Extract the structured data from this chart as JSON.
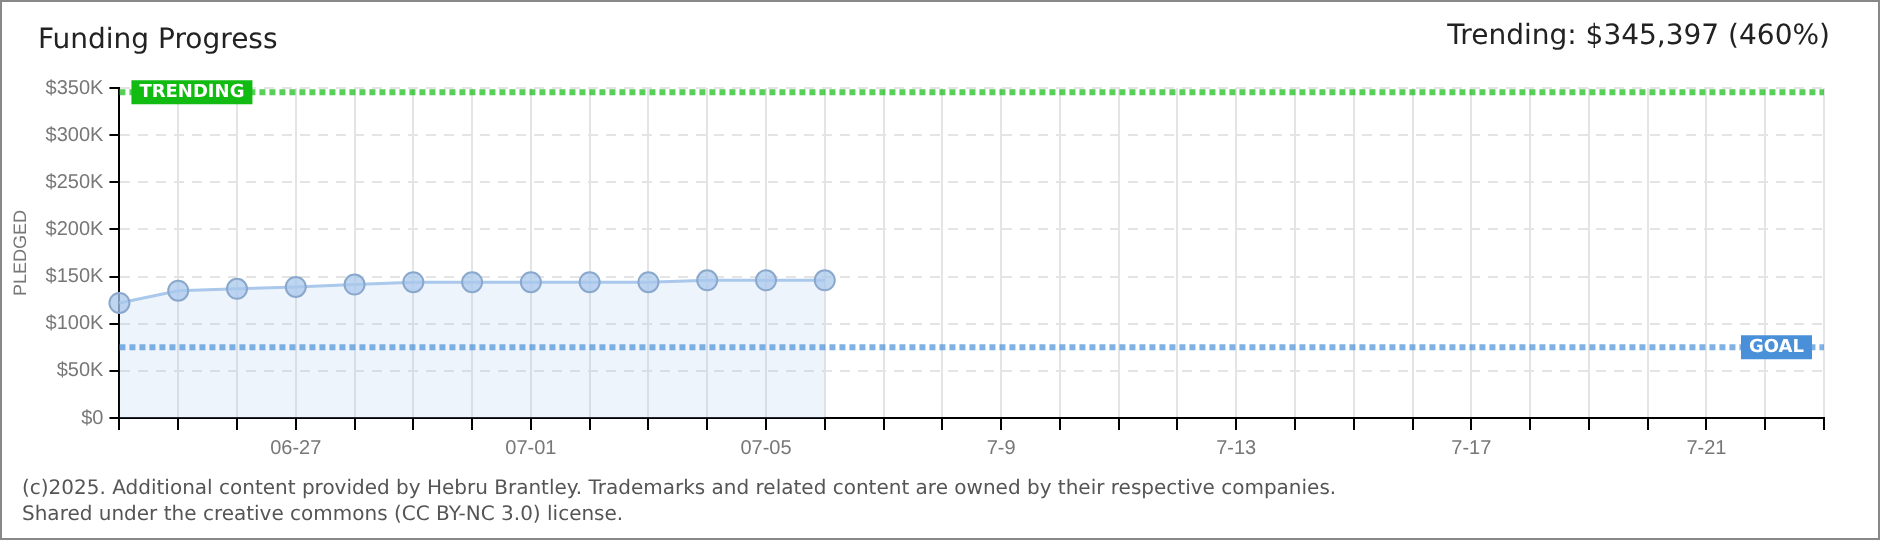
{
  "chart_data": {
    "type": "area",
    "title": "Funding Progress",
    "subtitle": "Trending: $345,397 (460%)",
    "ylabel": "PLEDGED",
    "categories": [
      null,
      null,
      null,
      "06-27",
      null,
      null,
      null,
      "07-01",
      null,
      null,
      null,
      "07-05",
      null,
      null,
      null,
      "7-9",
      null,
      null,
      null,
      "7-13",
      null,
      null,
      null,
      "7-17",
      null,
      null,
      null,
      "7-21",
      null,
      null
    ],
    "series": [
      {
        "color": "#a9c8ec",
        "values": [
          122000,
          135000,
          137000,
          139000,
          141500,
          144000,
          144000,
          144000,
          144000,
          144000,
          146000,
          146000,
          146000,
          null,
          null,
          null,
          null,
          null,
          null,
          null,
          null,
          null,
          null,
          null,
          null,
          null,
          null,
          null,
          null,
          null
        ]
      }
    ],
    "ylim": [
      0,
      350000
    ],
    "yticks": [
      {
        "value": 0,
        "label": "$0"
      },
      {
        "value": 50000,
        "label": "$50K"
      },
      {
        "value": 100000,
        "label": "$100K"
      },
      {
        "value": 150000,
        "label": "$150K"
      },
      {
        "value": 200000,
        "label": "$200K"
      },
      {
        "value": 250000,
        "label": "$250K"
      },
      {
        "value": 300000,
        "label": "$300K"
      },
      {
        "value": 350000,
        "label": "$350K"
      }
    ],
    "ref_lines": [
      {
        "axis": "y",
        "value": 345397,
        "label": "TRENDING",
        "color": "#11bb11",
        "line_style": "dotted"
      },
      {
        "axis": "y",
        "value": 75000,
        "label": "GOAL",
        "color": "#4a90d9",
        "line_style": "dotted"
      }
    ],
    "annotations": [
      "(c)2025. Additional content provided by Hebru Brantley. Trademarks and related content are owned by their respective companies.",
      "Shared under the creative commons (CC BY-NC 3.0) license."
    ],
    "grid": true,
    "marker": "circle",
    "legend": false
  }
}
